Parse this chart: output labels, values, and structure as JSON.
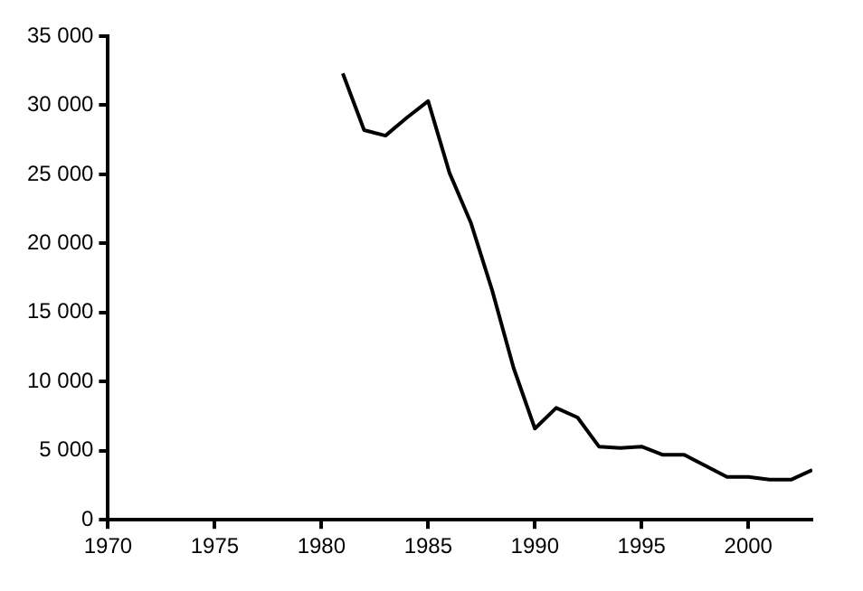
{
  "chart_data": {
    "type": "line",
    "x": [
      1981,
      1982,
      1983,
      1984,
      1985,
      1986,
      1987,
      1988,
      1989,
      1990,
      1991,
      1992,
      1993,
      1994,
      1995,
      1996,
      1997,
      1998,
      1999,
      2000,
      2001,
      2002,
      2003
    ],
    "series": [
      {
        "color": "#000000",
        "values": [
          32300,
          28200,
          27800,
          29100,
          30300,
          25100,
          21500,
          16600,
          11000,
          6600,
          8100,
          7400,
          5300,
          5200,
          5300,
          4700,
          4700,
          3900,
          3100,
          3100,
          2900,
          2900,
          3600
        ]
      }
    ],
    "xlim": [
      1970,
      2003
    ],
    "xticks": [
      1970,
      1975,
      1980,
      1985,
      1990,
      1995,
      2000
    ],
    "ylim": [
      0,
      35000
    ],
    "yticks": [
      {
        "value": 0,
        "label": "0"
      },
      {
        "value": 5000,
        "label": "5 000"
      },
      {
        "value": 10000,
        "label": "10 000"
      },
      {
        "value": 15000,
        "label": "15 000"
      },
      {
        "value": 20000,
        "label": "20 000"
      },
      {
        "value": 25000,
        "label": "25 000"
      },
      {
        "value": 30000,
        "label": "30 000"
      },
      {
        "value": 35000,
        "label": "35 000"
      }
    ],
    "grid": false,
    "legend": false,
    "marker": "none",
    "line_style": "solid"
  }
}
